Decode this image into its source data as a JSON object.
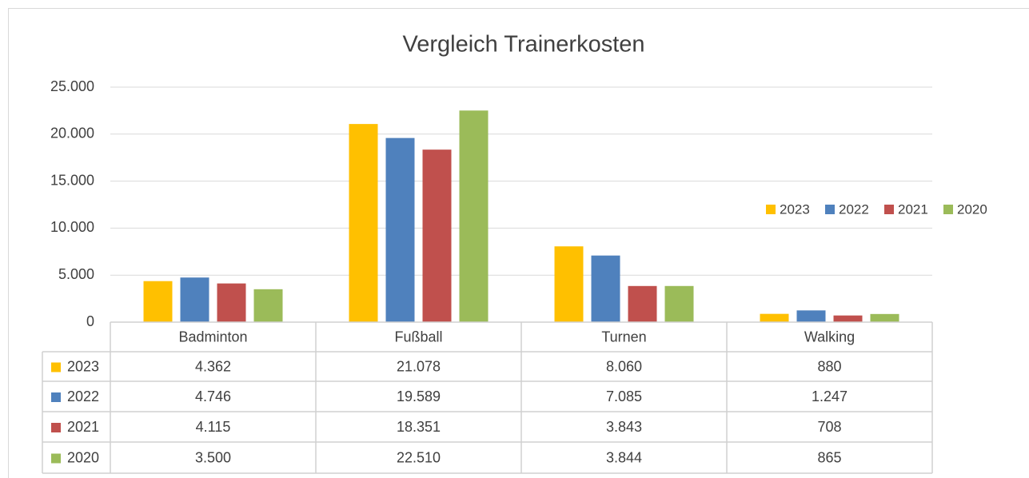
{
  "chart_data": {
    "type": "bar",
    "title": "Vergleich Trainerkosten",
    "categories": [
      "Badminton",
      "Fußball",
      "Turnen",
      "Walking"
    ],
    "series": [
      {
        "name": "2023",
        "color": "#ffc000",
        "values": [
          4362,
          21078,
          8060,
          880
        ],
        "value_labels": [
          "4.362",
          "21.078",
          "8.060",
          "880"
        ]
      },
      {
        "name": "2022",
        "color": "#4f81bd",
        "values": [
          4746,
          19589,
          7085,
          1247
        ],
        "value_labels": [
          "4.746",
          "19.589",
          "7.085",
          "1.247"
        ]
      },
      {
        "name": "2021",
        "color": "#c0504d",
        "values": [
          4115,
          18351,
          3843,
          708
        ],
        "value_labels": [
          "4.115",
          "18.351",
          "3.843",
          "708"
        ]
      },
      {
        "name": "2020",
        "color": "#9bbb59",
        "values": [
          3500,
          22510,
          3844,
          865
        ],
        "value_labels": [
          "3.500",
          "22.510",
          "3.844",
          "865"
        ]
      }
    ],
    "ylim": [
      0,
      25000
    ],
    "yticks": [
      0,
      {
        "value": 5000,
        "label": "5.000"
      },
      {
        "value": 10000,
        "label": "10.000"
      },
      {
        "value": 15000,
        "label": "15.000"
      },
      {
        "value": 20000,
        "label": "20.000"
      },
      {
        "value": 25000,
        "label": "25.000"
      }
    ],
    "grid": true,
    "legend": "right",
    "data_table": true
  }
}
